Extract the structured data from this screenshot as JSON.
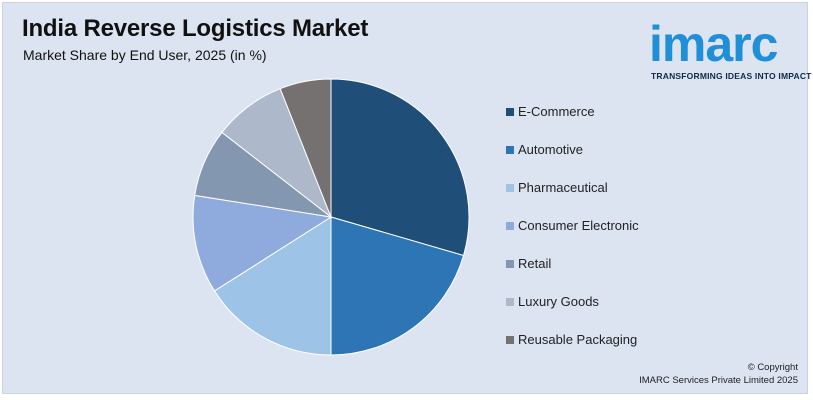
{
  "header": {
    "title": "India Reverse Logistics Market",
    "subtitle": "Market Share by End User, 2025 (in %)"
  },
  "logo": {
    "word": "imarc",
    "tagline": "TRANSFORMING IDEAS INTO IMPACT",
    "color": "#1f8fd8"
  },
  "footer": {
    "copyright_line1": "© Copyright",
    "copyright_line2": "IMARC Services Private Limited 2025"
  },
  "chart_data": {
    "type": "pie",
    "title": "India Reverse Logistics Market",
    "subtitle": "Market Share by End User, 2025 (in %)",
    "legend_position": "right",
    "slices": [
      {
        "label": "E-Commerce",
        "value": 29.5,
        "color": "#1f4e79"
      },
      {
        "label": "Automotive",
        "value": 20.5,
        "color": "#2e75b6"
      },
      {
        "label": "Pharmaceutical",
        "value": 16.0,
        "color": "#9dc3e6"
      },
      {
        "label": "Consumer Electronic",
        "value": 11.5,
        "color": "#8faadc"
      },
      {
        "label": "Retail",
        "value": 8.0,
        "color": "#8497b0"
      },
      {
        "label": "Luxury Goods",
        "value": 8.5,
        "color": "#adb9ca"
      },
      {
        "label": "Reusable Packaging",
        "value": 6.0,
        "color": "#767171"
      }
    ]
  }
}
